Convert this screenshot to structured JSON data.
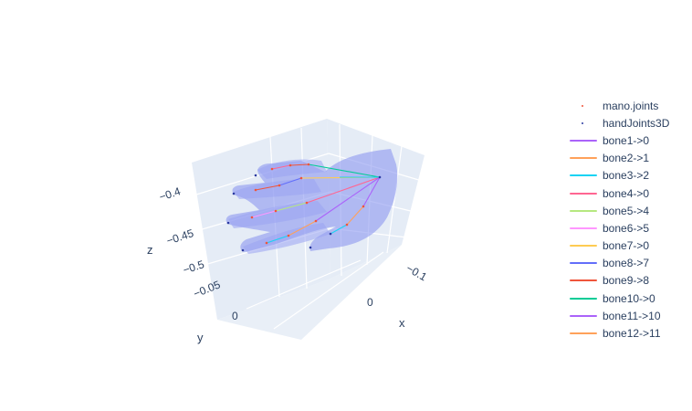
{
  "chart_data": {
    "type": "scatter3d",
    "scene": {
      "x_axis": {
        "title": "x",
        "tick_labels": [
          "−0.1",
          "0"
        ]
      },
      "y_axis": {
        "title": "y",
        "tick_labels": [
          "−0.05",
          "0"
        ]
      },
      "z_axis": {
        "title": "z",
        "tick_labels": [
          "−0.4",
          "−0.45",
          "−0.5"
        ]
      }
    },
    "mesh": {
      "name": "hand mesh",
      "color": "#8c97f0"
    },
    "legend": {
      "position": "right"
    },
    "series": [
      {
        "name": "mano.joints",
        "mode": "markers",
        "color": "#ef553b"
      },
      {
        "name": "handJoints3D",
        "mode": "markers",
        "color": "#2b3aa0"
      },
      {
        "name": "bone1->0",
        "mode": "lines",
        "color": "#ab63fa"
      },
      {
        "name": "bone2->1",
        "mode": "lines",
        "color": "#ffa15a"
      },
      {
        "name": "bone3->2",
        "mode": "lines",
        "color": "#19d3f3"
      },
      {
        "name": "bone4->0",
        "mode": "lines",
        "color": "#ff6692"
      },
      {
        "name": "bone5->4",
        "mode": "lines",
        "color": "#b6e880"
      },
      {
        "name": "bone6->5",
        "mode": "lines",
        "color": "#ff97ff"
      },
      {
        "name": "bone7->0",
        "mode": "lines",
        "color": "#fecb52"
      },
      {
        "name": "bone8->7",
        "mode": "lines",
        "color": "#636efa"
      },
      {
        "name": "bone9->8",
        "mode": "lines",
        "color": "#ef553b"
      },
      {
        "name": "bone10->0",
        "mode": "lines",
        "color": "#00cc96"
      },
      {
        "name": "bone11->10",
        "mode": "lines",
        "color": "#ab63fa"
      },
      {
        "name": "bone12->11",
        "mode": "lines",
        "color": "#ffa15a"
      }
    ]
  }
}
